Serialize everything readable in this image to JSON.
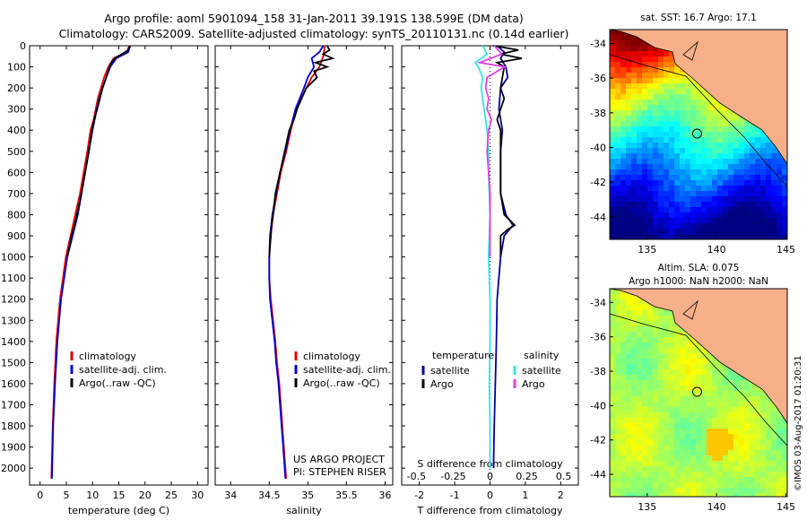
{
  "titles": {
    "line1": "Argo profile: aoml 5901094_158 31-Jan-2011 39.191S 138.599E (DM data)",
    "line2": "Climatology: CARS2009. Satellite-adjusted climatology: synTS_20110131.nc (0.14d earlier)"
  },
  "colors": {
    "climatology": "#e00000",
    "satellite": "#0000cc",
    "argo": "#000000",
    "sat_temp": "#000099",
    "sat_sal": "#33e6e6",
    "argo_sal": "#e040e0",
    "land": "#f5b08a"
  },
  "chart_data": [
    {
      "type": "line",
      "xlabel": "temperature (deg C)",
      "ylabel": "",
      "xlim": [
        -2,
        32
      ],
      "ylim": [
        2080,
        0
      ],
      "xticks": [
        0,
        5,
        10,
        15,
        20,
        25,
        30
      ],
      "yticks": [
        0,
        100,
        200,
        300,
        400,
        500,
        600,
        700,
        800,
        900,
        1000,
        1100,
        1200,
        1300,
        1400,
        1500,
        1600,
        1700,
        1800,
        1900,
        2000
      ],
      "legend": [
        "climatology",
        "satellite-adj. clim.",
        "Argo(..raw -QC)"
      ],
      "series": [
        {
          "name": "climatology",
          "color": "climatology",
          "y": [
            0,
            30,
            60,
            100,
            150,
            200,
            250,
            300,
            350,
            400,
            500,
            600,
            700,
            800,
            900,
            1000,
            1200,
            1400,
            1600,
            1800,
            2000,
            2050
          ],
          "x": [
            17.0,
            16.5,
            14.0,
            13.0,
            12.2,
            11.6,
            11.0,
            10.6,
            10.2,
            9.6,
            9.0,
            8.3,
            7.6,
            6.7,
            5.8,
            4.9,
            3.8,
            3.1,
            2.7,
            2.4,
            2.2,
            2.15
          ]
        },
        {
          "name": "satellite-adj. clim.",
          "color": "satellite",
          "y": [
            0,
            30,
            60,
            100,
            150,
            200,
            250,
            300,
            350,
            400,
            500,
            600,
            700,
            800,
            900,
            1000,
            1200,
            1400,
            1600,
            1800,
            2000,
            2050
          ],
          "x": [
            17.2,
            16.8,
            14.5,
            13.4,
            12.6,
            11.9,
            11.3,
            10.8,
            10.4,
            10.0,
            9.3,
            8.6,
            7.9,
            7.2,
            6.2,
            5.2,
            4.0,
            3.3,
            2.85,
            2.5,
            2.3,
            2.25
          ]
        },
        {
          "name": "Argo(..raw -QC)",
          "color": "argo",
          "y": [
            0,
            20,
            40,
            60,
            80,
            100,
            150,
            200,
            250,
            300,
            350,
            400,
            500,
            600,
            700,
            800,
            850,
            900,
            950,
            1000
          ],
          "x": [
            17.1,
            16.8,
            15.6,
            14.2,
            13.6,
            13.2,
            12.6,
            11.9,
            11.4,
            10.9,
            10.3,
            9.9,
            9.3,
            8.6,
            7.9,
            7.0,
            6.6,
            6.0,
            5.6,
            5.2
          ]
        }
      ]
    },
    {
      "type": "line",
      "xlabel": "salinity",
      "ylabel": "",
      "xlim": [
        33.8,
        36.1
      ],
      "ylim": [
        2080,
        0
      ],
      "xticks": [
        34,
        34.5,
        35,
        35.5,
        36
      ],
      "legend": [
        "climatology",
        "satellite-adj. clim.",
        "Argo(..raw -QC)"
      ],
      "annotations": [
        "US ARGO PROJECT",
        "PI: STEPHEN RISER"
      ],
      "series": [
        {
          "name": "climatology",
          "color": "climatology",
          "y": [
            0,
            50,
            100,
            150,
            200,
            300,
            400,
            500,
            600,
            700,
            800,
            900,
            1000,
            1100,
            1200,
            1300,
            1400,
            1500,
            1600,
            1700,
            1800,
            1900,
            2000,
            2050
          ],
          "x": [
            35.22,
            35.2,
            35.15,
            35.05,
            34.98,
            34.85,
            34.78,
            34.72,
            34.65,
            34.6,
            34.55,
            34.52,
            34.5,
            34.5,
            34.52,
            34.55,
            34.58,
            34.6,
            34.63,
            34.65,
            34.67,
            34.69,
            34.71,
            34.72
          ]
        },
        {
          "name": "satellite-adj. clim.",
          "color": "satellite",
          "y": [
            0,
            30,
            60,
            100,
            150,
            200,
            300,
            400,
            500,
            600,
            700,
            800,
            900,
            1000,
            1100,
            1200,
            1300,
            1400,
            1500,
            1600,
            1700,
            1800,
            1900,
            2000,
            2050
          ],
          "x": [
            35.2,
            35.15,
            35.05,
            35.08,
            35.0,
            34.95,
            34.84,
            34.77,
            34.71,
            34.64,
            34.59,
            34.54,
            34.51,
            34.5,
            34.5,
            34.51,
            34.54,
            34.57,
            34.59,
            34.62,
            34.64,
            34.66,
            34.68,
            34.7,
            34.71
          ]
        },
        {
          "name": "Argo(..raw -QC)",
          "color": "argo",
          "y": [
            0,
            20,
            40,
            60,
            80,
            100,
            120,
            150,
            200,
            250,
            300,
            350,
            400,
            500,
            600,
            700,
            800,
            850,
            900,
            950,
            1000
          ],
          "x": [
            35.25,
            35.28,
            35.2,
            35.32,
            35.1,
            35.25,
            35.08,
            35.12,
            34.98,
            34.92,
            34.86,
            34.82,
            34.76,
            34.7,
            34.64,
            34.58,
            34.55,
            34.53,
            34.52,
            34.51,
            34.5
          ]
        }
      ]
    },
    {
      "type": "line",
      "xlabel": "T difference from climatology",
      "xlabel_top": "S difference from climatology",
      "xlim": [
        -2.5,
        2.5
      ],
      "ylim": [
        2080,
        0
      ],
      "xticks": [
        -2,
        -1,
        0,
        1,
        2
      ],
      "xticks_sal": [
        -0.5,
        -0.25,
        0,
        0.25,
        0.5
      ],
      "xtick_labels_sal": [
        "-0.5",
        "-0.25",
        "0",
        "0.25",
        "0.5"
      ],
      "legend_temp_title": "temperature",
      "legend_sal_title": "salinity",
      "legend_temp": [
        "satellite",
        "Argo"
      ],
      "legend_sal": [
        "satellite",
        "Argo"
      ],
      "series": [
        {
          "name": "T satellite",
          "color": "sat_temp",
          "y": [
            0,
            30,
            60,
            100,
            150,
            200,
            300,
            400,
            500,
            600,
            700,
            800,
            850,
            900,
            1000,
            1200,
            1400,
            1600,
            1800,
            2000
          ],
          "x": [
            0.2,
            0.4,
            0.3,
            0.45,
            0.5,
            0.3,
            0.25,
            0.35,
            0.3,
            0.3,
            0.3,
            0.45,
            0.65,
            0.4,
            0.3,
            0.2,
            0.18,
            0.15,
            0.12,
            0.1
          ]
        },
        {
          "name": "T Argo",
          "color": "argo",
          "y": [
            0,
            20,
            40,
            60,
            80,
            100,
            150,
            200,
            250,
            300,
            350,
            400,
            500,
            600,
            700,
            800,
            850,
            870,
            900,
            950,
            1000
          ],
          "x": [
            0.1,
            0.8,
            0.3,
            0.9,
            0.2,
            0.4,
            0.35,
            0.3,
            0.4,
            0.3,
            0.2,
            0.3,
            0.3,
            0.3,
            0.3,
            0.4,
            0.7,
            0.5,
            0.3,
            0.3,
            0.3
          ]
        },
        {
          "name": "S satellite",
          "color": "sat_sal",
          "y": [
            0,
            40,
            80,
            100,
            150,
            200,
            300,
            400,
            500,
            600,
            800,
            1000,
            1200,
            1400,
            1600,
            1800,
            2000
          ],
          "x": [
            -0.05,
            -0.02,
            -0.1,
            -0.08,
            -0.05,
            -0.06,
            -0.04,
            -0.02,
            -0.01,
            -0.01,
            0,
            -0.01,
            0,
            0,
            -0.005,
            0,
            0
          ]
        },
        {
          "name": "S Argo",
          "color": "argo_sal",
          "y": [
            0,
            40,
            80,
            100,
            150,
            200,
            250,
            300,
            350,
            400,
            500,
            600,
            700,
            800,
            900,
            1000
          ],
          "x": [
            0.03,
            0.08,
            -0.07,
            0.1,
            -0.02,
            -0.03,
            -0.01,
            -0.02,
            0.01,
            -0.01,
            -0.02,
            -0.01,
            0,
            0,
            0,
            0
          ]
        }
      ]
    }
  ],
  "maps": {
    "sst": {
      "title": "sat. SST: 16.7  Argo: 17.1",
      "xticks": [
        135,
        140,
        145
      ],
      "yticks": [
        -34,
        -36,
        -38,
        -40,
        -42,
        -44
      ]
    },
    "sla": {
      "title1": "Altim. SLA: 0.075",
      "title2": "Argo h1000: NaN h2000: NaN",
      "xticks": [
        135,
        140,
        145
      ],
      "yticks": [
        -34,
        -36,
        -38,
        -40,
        -42,
        -44
      ]
    },
    "float_position": {
      "lon": 138.6,
      "lat": -39.2
    }
  },
  "credit": "©IMOS 03-Aug-2017 01:20:31"
}
